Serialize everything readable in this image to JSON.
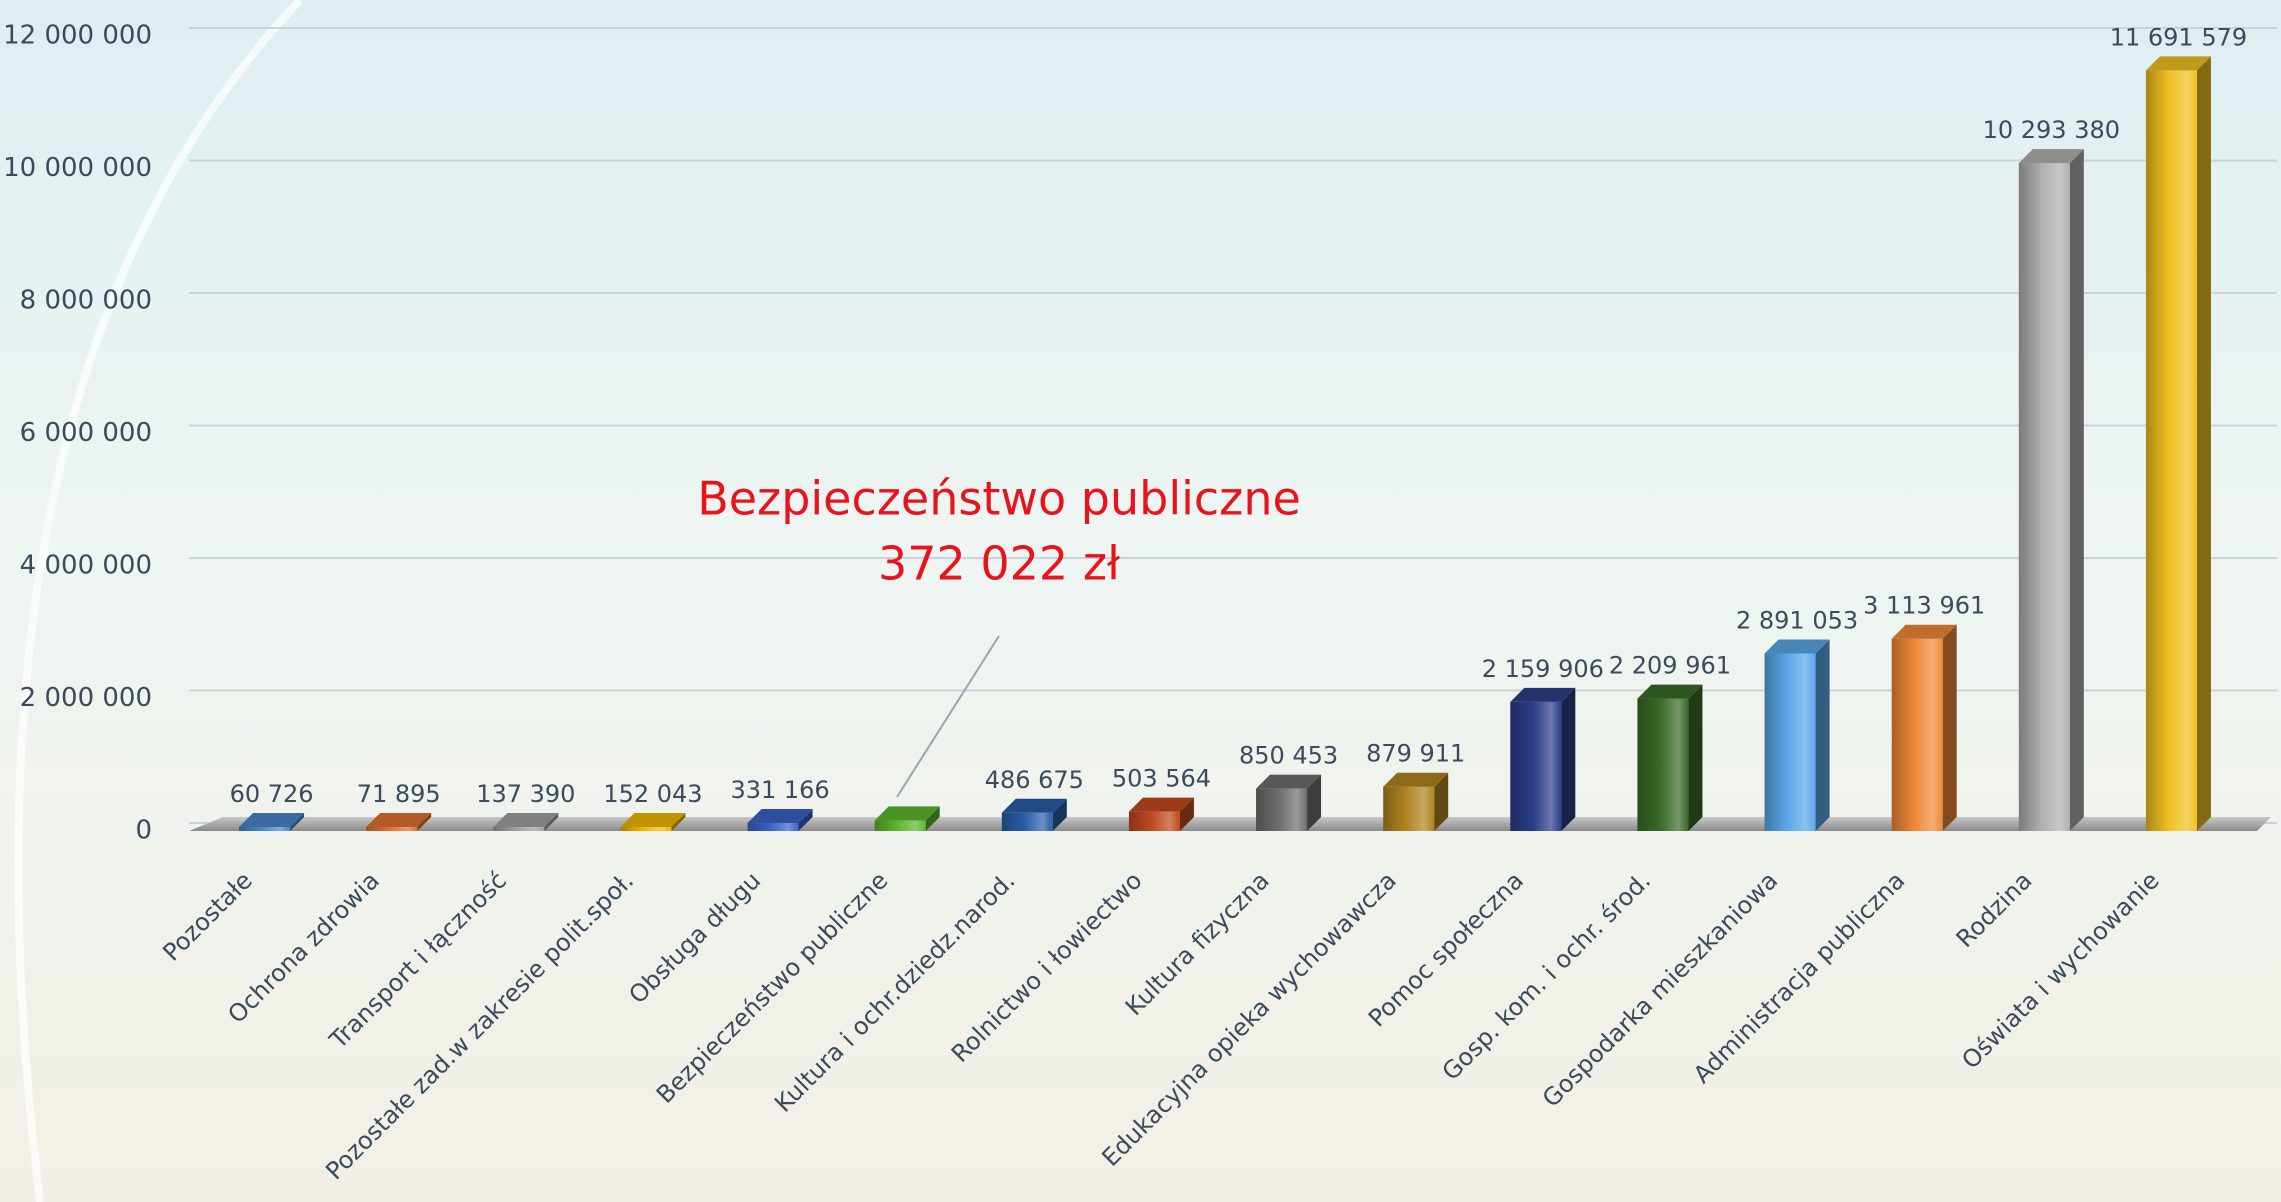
{
  "chart_data": {
    "type": "bar3d",
    "categories": [
      "Pozostałe",
      "Ochrona zdrowia",
      "Transport i łączność",
      "Pozostałe zad.w zakresie polit.społ.",
      "Obsługa długu",
      "Bezpieczeństwo publiczne",
      "Kultura i ochr.dziedz.narod.",
      "Rolnictwo i łowiectwo",
      "Kultura fizyczna",
      "Edukacyjna opieka wychowawcza",
      "Pomoc społeczna",
      "Gosp. kom. i ochr. środ.",
      "Gospodarka mieszkaniowa",
      "Administracja publiczna",
      "Rodzina",
      "Oświata i wychowanie"
    ],
    "values": [
      60726,
      71895,
      137390,
      152043,
      331166,
      372022,
      486675,
      503564,
      850453,
      879911,
      2159906,
      2209961,
      2891053,
      3113961,
      10293380,
      11691579
    ],
    "value_labels": [
      "60 726",
      "71 895",
      "137 390",
      "152 043",
      "331 166",
      null,
      "486 675",
      "503 564",
      "850 453",
      "879 911",
      "2 159 906",
      "2 209 961",
      "2 891 053",
      "3 113 961",
      "10 293 380",
      "11 691 579"
    ],
    "colors": [
      "#4a86c8",
      "#e07030",
      "#a0a0a0",
      "#f0b800",
      "#3a62c8",
      "#5cb82e",
      "#2a5ea8",
      "#c04a20",
      "#6e6e6e",
      "#b08420",
      "#2a3e88",
      "#3a6a28",
      "#5aa8e8",
      "#f08838",
      "#b0b0b0",
      "#f0c020"
    ],
    "annotation": [
      "Bezpieczeństwo publiczne",
      "372 022 zł"
    ],
    "ylim": [
      0,
      12000000
    ],
    "yticks": [
      0,
      {
        "value": 2000000,
        "label": "2 000 000"
      },
      {
        "value": 4000000,
        "label": "4 000 000"
      },
      {
        "value": 6000000,
        "label": "6 000 000"
      },
      {
        "value": 8000000,
        "label": "8 000 000"
      },
      {
        "value": 10000000,
        "label": "10 000 000"
      },
      {
        "value": 12000000,
        "label": "12 000 000"
      }
    ],
    "grid": true
  }
}
